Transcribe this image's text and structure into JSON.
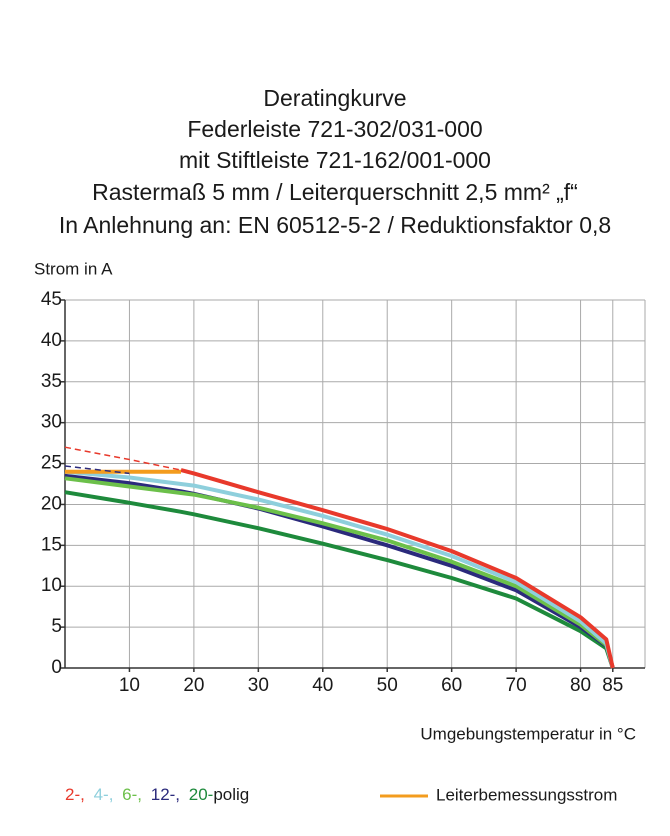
{
  "chart_data": {
    "type": "line",
    "title": [
      "Deratingkurve",
      "Federleiste 721-302/031-000",
      "mit Stiftleiste 721-162/001-000",
      "Rastermaß 5 mm / Leiterquerschnitt 2,5 mm² „f“",
      "In Anlehnung an: EN 60512-5-2 / Reduktionsfaktor 0,8"
    ],
    "y_label": "Strom in A",
    "x_label": "Umgebungstemperatur in °C",
    "legend_suffix": "polig",
    "x": [
      0,
      10,
      18,
      20,
      30,
      40,
      50,
      60,
      70,
      80,
      84,
      85
    ],
    "xlim": [
      0,
      90
    ],
    "xticks": [
      10,
      20,
      30,
      40,
      50,
      60,
      70,
      80,
      85
    ],
    "ylim": [
      0,
      45
    ],
    "yticks": [
      0,
      5,
      10,
      15,
      20,
      25,
      30,
      35,
      40,
      45
    ],
    "grid": true,
    "series": [
      {
        "name": "2-,",
        "color": "#e8392b",
        "values": [
          null,
          null,
          24.2,
          23.8,
          21.5,
          19.3,
          17,
          14.3,
          11,
          6.2,
          3.5,
          0
        ]
      },
      {
        "name": "4-,",
        "color": "#8ecfdc",
        "values": [
          24,
          23.3,
          22.5,
          22.3,
          20.6,
          18.6,
          16.3,
          13.7,
          10.5,
          5.7,
          3,
          0
        ]
      },
      {
        "name": "6-,",
        "color": "#6cc04a",
        "values": [
          23.2,
          22.2,
          21.4,
          21.2,
          19.6,
          17.7,
          15.6,
          13,
          10,
          5.3,
          2.8,
          0
        ]
      },
      {
        "name": "12-,",
        "color": "#2b2a7c",
        "values": [
          23.5,
          22.6,
          21.6,
          21.3,
          19.5,
          17.3,
          15,
          12.5,
          9.5,
          5,
          2.7,
          0
        ]
      },
      {
        "name": "20-",
        "color": "#1e8a3c",
        "values": [
          21.5,
          20.2,
          19.1,
          18.8,
          17.1,
          15.2,
          13.2,
          11,
          8.5,
          4.5,
          2.4,
          0
        ]
      },
      {
        "name": "Leiterbemessungsstrom",
        "color": "#f39c1e",
        "values": [
          24,
          24,
          24,
          null,
          null,
          null,
          null,
          null,
          null,
          null,
          null,
          null
        ]
      },
      {
        "color": "#e8392b",
        "dash": true,
        "values": [
          27,
          25.5,
          24.2,
          null,
          null,
          null,
          null,
          null,
          null,
          null,
          null,
          null
        ]
      },
      {
        "color": "#2b2a7c",
        "dash": true,
        "values": [
          24.7,
          23.8,
          null,
          null,
          null,
          null,
          null,
          null,
          null,
          null,
          null,
          null
        ]
      }
    ]
  }
}
